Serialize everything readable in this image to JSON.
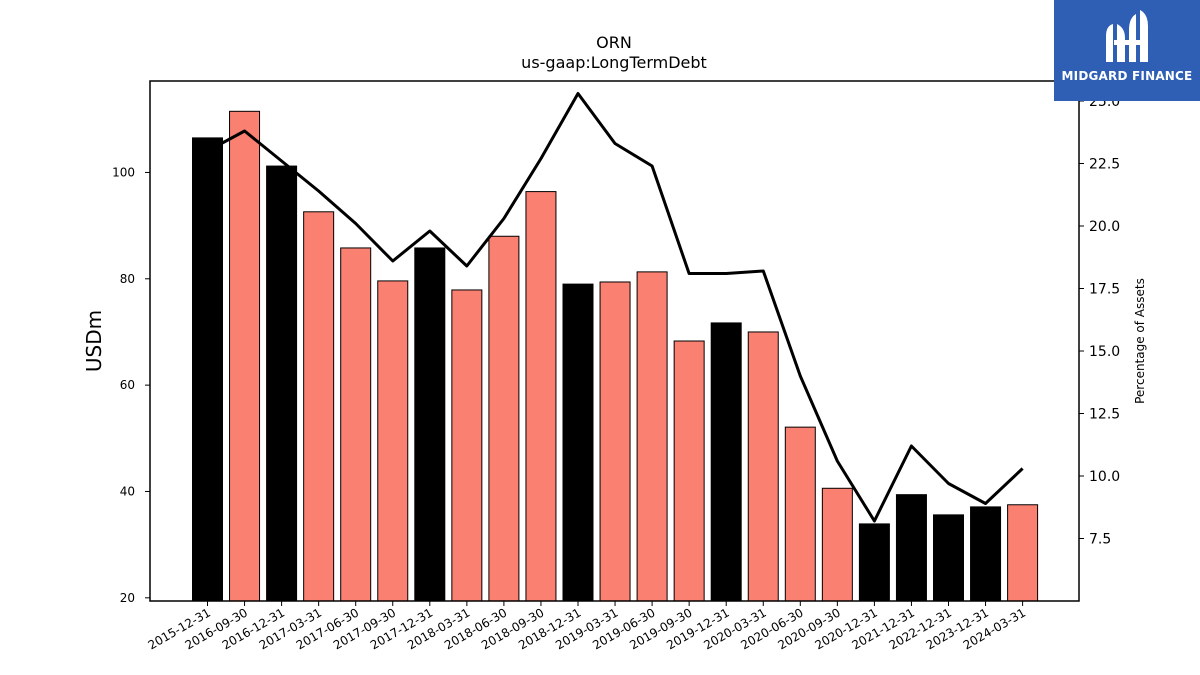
{
  "chart_data": {
    "type": "bar",
    "title": "ORN",
    "subtitle": "us-gaap:LongTermDebt",
    "ylabel": "USDm",
    "y2label": "Percentage of Assets",
    "ylim": [
      19.4,
      117.2
    ],
    "y2lim": [
      5.0,
      25.8
    ],
    "yticks": [
      20,
      40,
      60,
      80,
      100
    ],
    "y2ticks": [
      "7.5",
      "10.0",
      "12.5",
      "15.0",
      "17.5",
      "20.0",
      "22.5",
      "25.0"
    ],
    "categories": [
      "2015-12-31",
      "2016-09-30",
      "2016-12-31",
      "2017-03-31",
      "2017-06-30",
      "2017-09-30",
      "2017-12-31",
      "2018-03-31",
      "2018-06-30",
      "2018-09-30",
      "2018-12-31",
      "2019-03-31",
      "2019-06-30",
      "2019-09-30",
      "2019-12-31",
      "2020-03-31",
      "2020-06-30",
      "2020-09-30",
      "2020-12-31",
      "2021-12-31",
      "2022-12-31",
      "2023-12-31",
      "2024-03-31"
    ],
    "series": [
      {
        "kind": "bar",
        "values": [
          106.5,
          111.5,
          101.2,
          92.6,
          85.8,
          79.6,
          85.8,
          77.9,
          88.0,
          96.4,
          79.0,
          79.4,
          81.3,
          68.3,
          71.7,
          70.0,
          52.1,
          40.6,
          33.9,
          39.4,
          35.6,
          37.1,
          37.5
        ],
        "colors": [
          "#000000",
          "#fa8072",
          "#000000",
          "#fa8072",
          "#fa8072",
          "#fa8072",
          "#000000",
          "#fa8072",
          "#fa8072",
          "#fa8072",
          "#000000",
          "#fa8072",
          "#fa8072",
          "#fa8072",
          "#000000",
          "#fa8072",
          "#fa8072",
          "#fa8072",
          "#000000",
          "#000000",
          "#000000",
          "#000000",
          "#fa8072"
        ]
      },
      {
        "kind": "line",
        "axis": "right",
        "color": "#000000",
        "values": [
          23.0,
          23.8,
          22.6,
          21.4,
          20.1,
          18.6,
          19.8,
          18.4,
          20.3,
          22.7,
          25.3,
          23.3,
          22.4,
          18.1,
          18.1,
          18.2,
          14.0,
          10.6,
          8.2,
          11.2,
          9.7,
          8.9,
          10.3
        ]
      }
    ],
    "grid": false,
    "legend": "none"
  },
  "logo": {
    "text": "MIDGARD FINANCE",
    "background": "#2e5fb5"
  }
}
